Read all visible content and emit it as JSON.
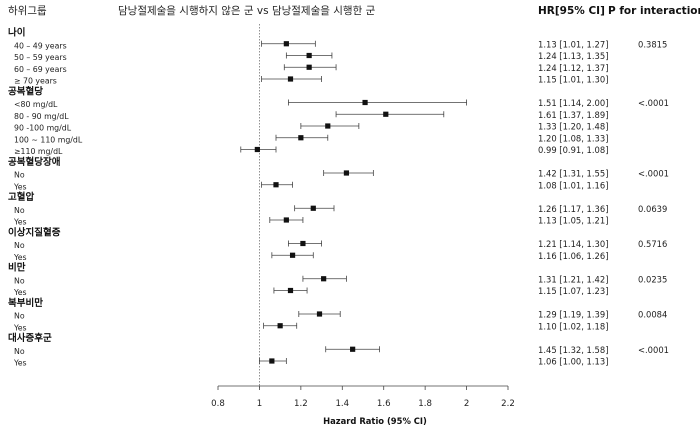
{
  "chart_data": {
    "type": "forest",
    "header": {
      "subgroup": "하위그룹",
      "comparison": "담낭절제술을 시행하지 않은 군 vs 담낭절제술을 시행한 군",
      "hr": "HR[95% CI]",
      "p": "P for interaction"
    },
    "xlabel": "Hazard Ratio (95% CI)",
    "xlim": [
      0.8,
      2.2
    ],
    "xticks": [
      "0.8",
      "1",
      "1.2",
      "1.4",
      "1.6",
      "1.8",
      "2",
      "2.2"
    ],
    "reference_line": 1,
    "rows": [
      {
        "kind": "group",
        "label": "나이"
      },
      {
        "kind": "item",
        "label": "40 – 49 years",
        "hr": 1.13,
        "lo": 1.01,
        "hi": 1.27,
        "text": "1.13 [1.01, 1.27]",
        "p": "0.3815"
      },
      {
        "kind": "item",
        "label": "50 – 59 years",
        "hr": 1.24,
        "lo": 1.13,
        "hi": 1.35,
        "text": "1.24 [1.13, 1.35]",
        "p": ""
      },
      {
        "kind": "item",
        "label": "60 – 69 years",
        "hr": 1.24,
        "lo": 1.12,
        "hi": 1.37,
        "text": "1.24 [1.12, 1.37]",
        "p": ""
      },
      {
        "kind": "item",
        "label": "≥ 70 years",
        "hr": 1.15,
        "lo": 1.01,
        "hi": 1.3,
        "text": "1.15 [1.01, 1.30]",
        "p": ""
      },
      {
        "kind": "group",
        "label": "공복혈당"
      },
      {
        "kind": "item",
        "label": "<80 mg/dL",
        "hr": 1.51,
        "lo": 1.14,
        "hi": 2.0,
        "text": "1.51 [1.14, 2.00]",
        "p": "<.0001"
      },
      {
        "kind": "item",
        "label": "80 - 90 mg/dL",
        "hr": 1.61,
        "lo": 1.37,
        "hi": 1.89,
        "text": "1.61 [1.37, 1.89]",
        "p": ""
      },
      {
        "kind": "item",
        "label": "90 -100 mg/dL",
        "hr": 1.33,
        "lo": 1.2,
        "hi": 1.48,
        "text": "1.33 [1.20, 1.48]",
        "p": ""
      },
      {
        "kind": "item",
        "label": "100 ~ 110 mg/dL",
        "hr": 1.2,
        "lo": 1.08,
        "hi": 1.33,
        "text": "1.20 [1.08, 1.33]",
        "p": ""
      },
      {
        "kind": "item",
        "label": "≥110 mg/dL",
        "hr": 0.99,
        "lo": 0.91,
        "hi": 1.08,
        "text": "0.99 [0.91, 1.08]",
        "p": ""
      },
      {
        "kind": "group",
        "label": "공복혈당장애"
      },
      {
        "kind": "item",
        "label": "No",
        "hr": 1.42,
        "lo": 1.31,
        "hi": 1.55,
        "text": "1.42 [1.31, 1.55]",
        "p": "<.0001"
      },
      {
        "kind": "item",
        "label": "Yes",
        "hr": 1.08,
        "lo": 1.01,
        "hi": 1.16,
        "text": "1.08 [1.01, 1.16]",
        "p": ""
      },
      {
        "kind": "group",
        "label": "고혈압"
      },
      {
        "kind": "item",
        "label": "No",
        "hr": 1.26,
        "lo": 1.17,
        "hi": 1.36,
        "text": "1.26 [1.17, 1.36]",
        "p": "0.0639"
      },
      {
        "kind": "item",
        "label": "Yes",
        "hr": 1.13,
        "lo": 1.05,
        "hi": 1.21,
        "text": "1.13 [1.05, 1.21]",
        "p": ""
      },
      {
        "kind": "group",
        "label": "이상지질혈증"
      },
      {
        "kind": "item",
        "label": "No",
        "hr": 1.21,
        "lo": 1.14,
        "hi": 1.3,
        "text": "1.21 [1.14, 1.30]",
        "p": "0.5716"
      },
      {
        "kind": "item",
        "label": "Yes",
        "hr": 1.16,
        "lo": 1.06,
        "hi": 1.26,
        "text": "1.16 [1.06, 1.26]",
        "p": ""
      },
      {
        "kind": "group",
        "label": "비만"
      },
      {
        "kind": "item",
        "label": "No",
        "hr": 1.31,
        "lo": 1.21,
        "hi": 1.42,
        "text": "1.31 [1.21, 1.42]",
        "p": "0.0235"
      },
      {
        "kind": "item",
        "label": "Yes",
        "hr": 1.15,
        "lo": 1.07,
        "hi": 1.23,
        "text": "1.15 [1.07, 1.23]",
        "p": ""
      },
      {
        "kind": "group",
        "label": "복부비만"
      },
      {
        "kind": "item",
        "label": "No",
        "hr": 1.29,
        "lo": 1.19,
        "hi": 1.39,
        "text": "1.29 [1.19, 1.39]",
        "p": "0.0084"
      },
      {
        "kind": "item",
        "label": "Yes",
        "hr": 1.1,
        "lo": 1.02,
        "hi": 1.18,
        "text": "1.10 [1.02, 1.18]",
        "p": ""
      },
      {
        "kind": "group",
        "label": "대사증후군"
      },
      {
        "kind": "item",
        "label": "No",
        "hr": 1.45,
        "lo": 1.32,
        "hi": 1.58,
        "text": "1.45 [1.32, 1.58]",
        "p": "<.0001"
      },
      {
        "kind": "item",
        "label": "Yes",
        "hr": 1.06,
        "lo": 1.0,
        "hi": 1.13,
        "text": "1.06 [1.00, 1.13]",
        "p": ""
      }
    ]
  }
}
